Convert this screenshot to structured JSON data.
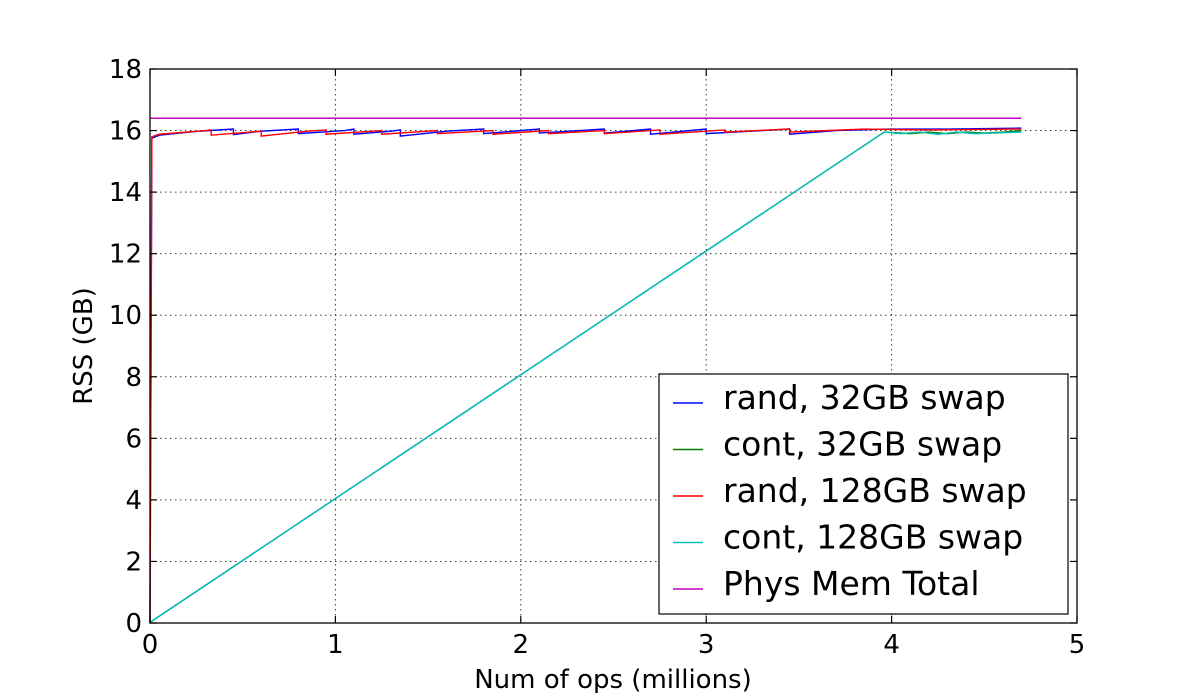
{
  "chart_data": {
    "type": "line",
    "title": "",
    "xlabel": "Num of ops (millions)",
    "ylabel": "RSS (GB)",
    "xlim": [
      0,
      5
    ],
    "ylim": [
      0,
      18
    ],
    "xticks": [
      0,
      1,
      2,
      3,
      4,
      5
    ],
    "yticks": [
      0,
      2,
      4,
      6,
      8,
      10,
      12,
      14,
      16,
      18
    ],
    "grid": true,
    "legend_position": "lower-right",
    "series": [
      {
        "name": "rand, 32GB swap",
        "color": "#0000ff",
        "points": [
          [
            0,
            0
          ],
          [
            0.01,
            15.75
          ],
          [
            0.05,
            15.85
          ],
          [
            0.25,
            15.97
          ],
          [
            0.45,
            16.05
          ],
          [
            0.45,
            15.87
          ],
          [
            0.6,
            15.98
          ],
          [
            0.8,
            16.05
          ],
          [
            0.8,
            15.9
          ],
          [
            1.05,
            16.0
          ],
          [
            1.1,
            16.05
          ],
          [
            1.1,
            15.88
          ],
          [
            1.3,
            15.98
          ],
          [
            1.35,
            16.02
          ],
          [
            1.35,
            15.82
          ],
          [
            1.6,
            15.98
          ],
          [
            1.8,
            16.05
          ],
          [
            1.8,
            15.9
          ],
          [
            2.1,
            16.05
          ],
          [
            2.1,
            15.92
          ],
          [
            2.45,
            16.05
          ],
          [
            2.45,
            15.92
          ],
          [
            2.7,
            16.05
          ],
          [
            2.7,
            15.88
          ],
          [
            3.0,
            16.05
          ],
          [
            3.0,
            15.9
          ],
          [
            3.45,
            16.05
          ],
          [
            3.45,
            15.88
          ],
          [
            3.7,
            16.0
          ],
          [
            4.0,
            16.05
          ],
          [
            4.3,
            16.05
          ],
          [
            4.7,
            16.08
          ]
        ]
      },
      {
        "name": "cont, 32GB swap",
        "color": "#008000",
        "points": [
          [
            0,
            0.02
          ],
          [
            3.96,
            15.95
          ],
          [
            4.1,
            15.9
          ],
          [
            4.2,
            15.95
          ],
          [
            4.3,
            15.9
          ],
          [
            4.4,
            15.95
          ],
          [
            4.5,
            15.92
          ],
          [
            4.6,
            15.95
          ],
          [
            4.7,
            16.0
          ]
        ]
      },
      {
        "name": "rand, 128GB swap",
        "color": "#ff0000",
        "points": [
          [
            0,
            0
          ],
          [
            0.01,
            15.8
          ],
          [
            0.05,
            15.88
          ],
          [
            0.3,
            16.0
          ],
          [
            0.33,
            16.02
          ],
          [
            0.33,
            15.85
          ],
          [
            0.6,
            15.98
          ],
          [
            0.6,
            15.82
          ],
          [
            0.85,
            15.98
          ],
          [
            0.95,
            16.02
          ],
          [
            0.95,
            15.88
          ],
          [
            1.25,
            16.0
          ],
          [
            1.25,
            15.88
          ],
          [
            1.55,
            16.0
          ],
          [
            1.55,
            15.9
          ],
          [
            1.85,
            16.0
          ],
          [
            1.85,
            15.88
          ],
          [
            2.15,
            16.0
          ],
          [
            2.15,
            15.9
          ],
          [
            2.45,
            16.0
          ],
          [
            2.45,
            15.9
          ],
          [
            2.75,
            16.02
          ],
          [
            2.75,
            15.88
          ],
          [
            3.1,
            16.02
          ],
          [
            3.1,
            15.95
          ],
          [
            3.45,
            16.05
          ],
          [
            3.45,
            15.95
          ],
          [
            3.85,
            16.05
          ],
          [
            4.2,
            16.02
          ],
          [
            4.7,
            16.05
          ]
        ]
      },
      {
        "name": "cont, 128GB swap",
        "color": "#00bfbf",
        "points": [
          [
            0,
            0.02
          ],
          [
            3.96,
            15.95
          ],
          [
            4.05,
            15.9
          ],
          [
            4.15,
            15.95
          ],
          [
            4.25,
            15.88
          ],
          [
            4.35,
            15.95
          ],
          [
            4.45,
            15.9
          ],
          [
            4.55,
            15.92
          ],
          [
            4.7,
            15.95
          ]
        ]
      },
      {
        "name": "Phys Mem Total",
        "color": "#bf00bf",
        "points": [
          [
            0,
            16.4
          ],
          [
            4.7,
            16.4
          ]
        ]
      }
    ]
  }
}
